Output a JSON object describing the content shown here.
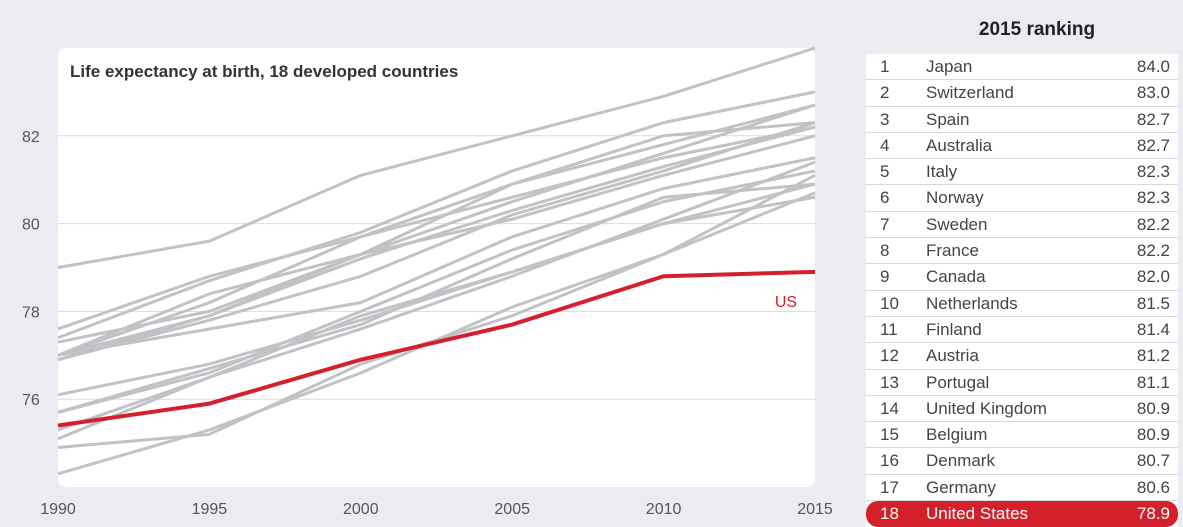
{
  "chart_data": {
    "type": "line",
    "title": "Life expectancy at birth, 18 developed countries",
    "x": [
      1990,
      1995,
      2000,
      2005,
      2010,
      2015
    ],
    "xlim": [
      1990,
      2015
    ],
    "ylim": [
      74,
      84
    ],
    "xticks": [
      "1990",
      "1995",
      "2000",
      "2005",
      "2010",
      "2015"
    ],
    "yticks": [
      "76",
      "78",
      "80",
      "82"
    ],
    "ytick_values": [
      76,
      78,
      80,
      82
    ],
    "grid": true,
    "highlight": {
      "name": "US",
      "label": "US",
      "color": "#d4202b",
      "values": [
        75.4,
        75.9,
        76.9,
        77.7,
        78.8,
        78.9
      ]
    },
    "background_series_color": "#c0c2c6",
    "series": [
      {
        "values": [
          79.0,
          79.6,
          81.1,
          82.0,
          82.9,
          84.0
        ]
      },
      {
        "values": [
          77.4,
          78.7,
          79.8,
          81.2,
          82.3,
          83.0
        ]
      },
      {
        "values": [
          77.0,
          78.4,
          79.3,
          80.5,
          81.6,
          82.7
        ]
      },
      {
        "values": [
          77.0,
          77.9,
          79.3,
          80.9,
          81.8,
          82.7
        ]
      },
      {
        "values": [
          77.0,
          78.2,
          79.7,
          80.9,
          82.0,
          82.3
        ]
      },
      {
        "values": [
          76.9,
          77.8,
          78.8,
          80.2,
          81.2,
          82.3
        ]
      },
      {
        "values": [
          77.6,
          78.8,
          79.7,
          80.6,
          81.5,
          82.2
        ]
      },
      {
        "values": [
          76.9,
          77.9,
          79.2,
          80.3,
          81.3,
          82.2
        ]
      },
      {
        "values": [
          77.3,
          78.0,
          79.3,
          80.1,
          81.1,
          82.0
        ]
      },
      {
        "values": [
          77.0,
          77.6,
          78.2,
          79.7,
          80.8,
          81.5
        ]
      },
      {
        "values": [
          75.1,
          76.5,
          77.6,
          78.8,
          80.1,
          81.4
        ]
      },
      {
        "values": [
          75.7,
          76.6,
          78.0,
          79.4,
          80.5,
          81.2
        ]
      },
      {
        "values": [
          74.3,
          75.3,
          76.6,
          78.1,
          79.3,
          81.1
        ]
      },
      {
        "values": [
          75.7,
          76.7,
          77.7,
          79.2,
          80.6,
          80.9
        ]
      },
      {
        "values": [
          76.1,
          76.8,
          77.8,
          78.9,
          80.0,
          80.9
        ]
      },
      {
        "values": [
          74.9,
          75.2,
          76.8,
          77.9,
          79.3,
          80.7
        ]
      },
      {
        "values": [
          75.3,
          76.5,
          77.9,
          78.9,
          80.0,
          80.6
        ]
      }
    ]
  },
  "ranking": {
    "title": "2015 ranking",
    "rows": [
      {
        "rank": "1",
        "country": "Japan",
        "value": "84.0"
      },
      {
        "rank": "2",
        "country": "Switzerland",
        "value": "83.0"
      },
      {
        "rank": "3",
        "country": "Spain",
        "value": "82.7"
      },
      {
        "rank": "4",
        "country": "Australia",
        "value": "82.7"
      },
      {
        "rank": "5",
        "country": "Italy",
        "value": "82.3"
      },
      {
        "rank": "6",
        "country": "Norway",
        "value": "82.3"
      },
      {
        "rank": "7",
        "country": "Sweden",
        "value": "82.2"
      },
      {
        "rank": "8",
        "country": "France",
        "value": "82.2"
      },
      {
        "rank": "9",
        "country": "Canada",
        "value": "82.0"
      },
      {
        "rank": "10",
        "country": "Netherlands",
        "value": "81.5"
      },
      {
        "rank": "11",
        "country": "Finland",
        "value": "81.4"
      },
      {
        "rank": "12",
        "country": "Austria",
        "value": "81.2"
      },
      {
        "rank": "13",
        "country": "Portugal",
        "value": "81.1"
      },
      {
        "rank": "14",
        "country": "United Kingdom",
        "value": "80.9"
      },
      {
        "rank": "15",
        "country": "Belgium",
        "value": "80.9"
      },
      {
        "rank": "16",
        "country": "Denmark",
        "value": "80.7"
      },
      {
        "rank": "17",
        "country": "Germany",
        "value": "80.6"
      },
      {
        "rank": "18",
        "country": "United States",
        "value": "78.9",
        "highlight": true
      }
    ]
  }
}
